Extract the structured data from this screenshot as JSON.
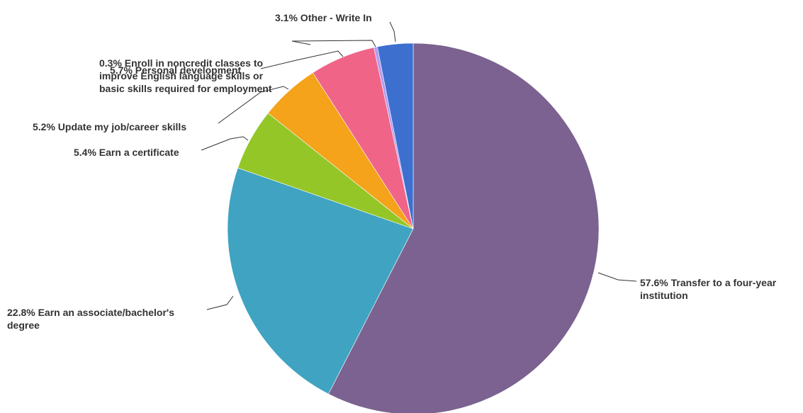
{
  "chart_data": {
    "type": "pie",
    "title": "",
    "start_angle_deg": 0,
    "direction": "clockwise",
    "slices": [
      {
        "label": "57.6% Transfer to a four-year institution",
        "percent": 57.6,
        "color": "#7b6290"
      },
      {
        "label": "22.8% Earn an associate/bachelor's degree",
        "percent": 22.8,
        "color": "#40a3c2"
      },
      {
        "label": "5.4% Earn a certificate",
        "percent": 5.4,
        "color": "#94c628"
      },
      {
        "label": "5.2% Update my job/career skills",
        "percent": 5.2,
        "color": "#f4a31a"
      },
      {
        "label": "5.7% Personal development",
        "percent": 5.7,
        "color": "#f06488"
      },
      {
        "label": "0.3% Enroll in noncredit classes to improve English language skills or basic skills required for employment",
        "percent": 0.3,
        "color": "#b69bf0"
      },
      {
        "label": "3.1% Other - Write In",
        "percent": 3.1,
        "color": "#3d6fcf"
      }
    ]
  }
}
